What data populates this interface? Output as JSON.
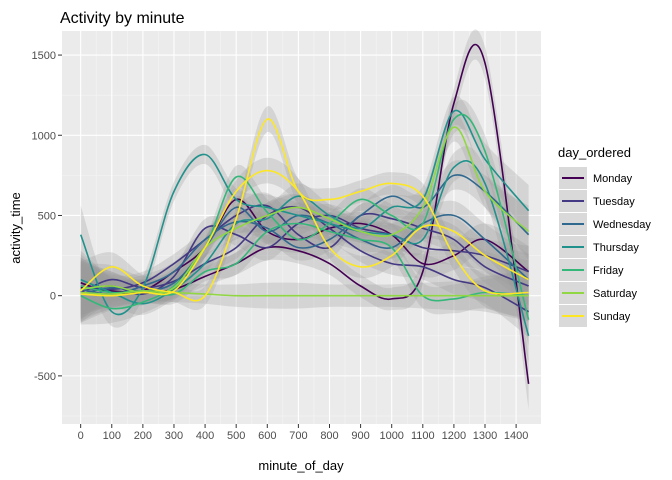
{
  "chart_data": {
    "type": "line",
    "title": "Activity by minute",
    "xlabel": "minute_of_day",
    "ylabel": "activity_time",
    "xlim": [
      -60,
      1480
    ],
    "ylim": [
      -800,
      1650
    ],
    "x_ticks": [
      "0",
      "100",
      "200",
      "300",
      "400",
      "500",
      "600",
      "700",
      "800",
      "900",
      "1000",
      "1100",
      "1200",
      "1300",
      "1400"
    ],
    "y_ticks": [
      "-500",
      "0",
      "500",
      "1000",
      "1500"
    ],
    "grid": true,
    "smoothing_band": true,
    "legend": {
      "title": "day_ordered",
      "placement": "right",
      "items": [
        "Monday",
        "Tuesday",
        "Wednesday",
        "Thursday",
        "Friday",
        "Saturday",
        "Sunday"
      ]
    },
    "x": [
      0,
      100,
      200,
      300,
      400,
      500,
      600,
      700,
      800,
      900,
      1000,
      1100,
      1200,
      1300,
      1440
    ],
    "series": [
      {
        "name": "Monday",
        "color": "#440154",
        "lines": [
          [
            50,
            30,
            20,
            40,
            120,
            200,
            300,
            280,
            200,
            60,
            -20,
            150,
            1200,
            1450,
            -550
          ],
          [
            80,
            20,
            30,
            150,
            300,
            600,
            400,
            350,
            420,
            450,
            380,
            200,
            250,
            350,
            150
          ]
        ]
      },
      {
        "name": "Tuesday",
        "color": "#443983",
        "lines": [
          [
            30,
            60,
            10,
            120,
            420,
            380,
            300,
            450,
            500,
            420,
            380,
            300,
            280,
            250,
            150
          ],
          [
            60,
            40,
            80,
            200,
            350,
            500,
            560,
            380,
            300,
            500,
            480,
            420,
            350,
            180,
            60
          ],
          [
            20,
            100,
            50,
            90,
            200,
            300,
            500,
            550,
            420,
            280,
            200,
            180,
            100,
            50,
            -100
          ]
        ]
      },
      {
        "name": "Wednesday",
        "color": "#31688e",
        "lines": [
          [
            40,
            10,
            60,
            150,
            350,
            460,
            420,
            300,
            350,
            500,
            620,
            550,
            750,
            650,
            380
          ],
          [
            10,
            50,
            30,
            80,
            300,
            550,
            400,
            500,
            450,
            350,
            300,
            450,
            500,
            350,
            100
          ]
        ]
      },
      {
        "name": "Thursday",
        "color": "#21918c",
        "lines": [
          [
            380,
            -100,
            50,
            650,
            880,
            600,
            550,
            500,
            450,
            400,
            380,
            350,
            800,
            700,
            -250
          ],
          [
            100,
            20,
            -50,
            40,
            200,
            450,
            480,
            620,
            500,
            420,
            550,
            600,
            1150,
            850,
            530
          ]
        ]
      },
      {
        "name": "Friday",
        "color": "#35b779",
        "lines": [
          [
            0,
            -80,
            -40,
            60,
            300,
            740,
            520,
            350,
            450,
            600,
            500,
            450,
            1100,
            900,
            -150
          ],
          [
            60,
            20,
            30,
            10,
            150,
            200,
            400,
            450,
            400,
            350,
            300,
            0,
            -20,
            20,
            0
          ]
        ]
      },
      {
        "name": "Saturday",
        "color": "#90d743",
        "lines": [
          [
            20,
            10,
            30,
            20,
            10,
            0,
            0,
            0,
            0,
            0,
            0,
            0,
            0,
            0,
            0
          ],
          [
            40,
            60,
            20,
            50,
            300,
            420,
            500,
            550,
            480,
            400,
            380,
            550,
            1050,
            650,
            400
          ]
        ]
      },
      {
        "name": "Sunday",
        "color": "#fde725",
        "lines": [
          [
            30,
            180,
            60,
            20,
            0,
            480,
            1100,
            650,
            600,
            650,
            700,
            620,
            250,
            30,
            20
          ],
          [
            10,
            0,
            20,
            30,
            300,
            650,
            780,
            650,
            300,
            180,
            250,
            430,
            400,
            250,
            100
          ]
        ]
      }
    ]
  }
}
